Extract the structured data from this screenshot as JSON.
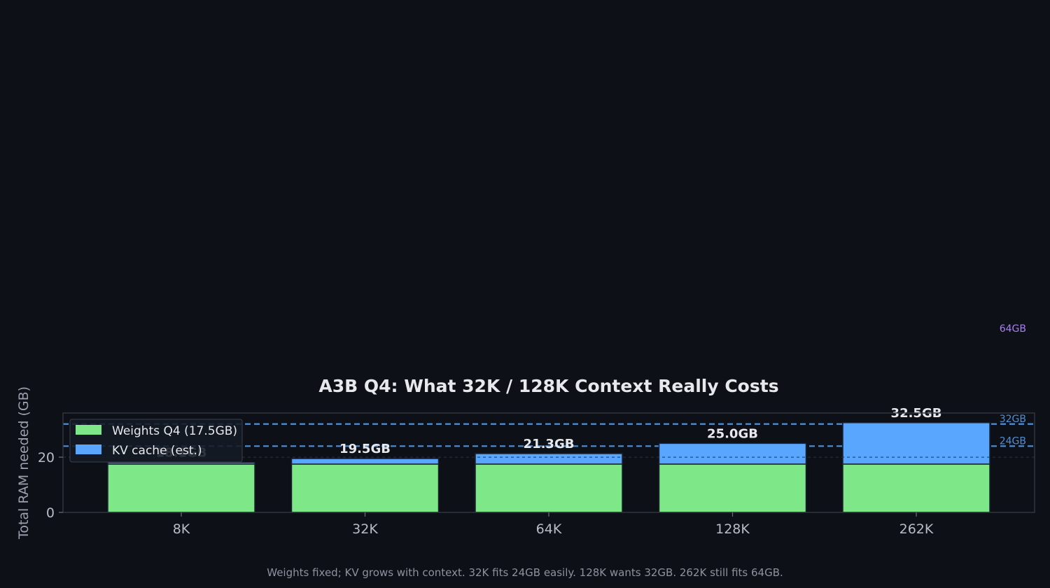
{
  "chart_data": {
    "type": "bar",
    "stacked": true,
    "title": "A3B Q4: What 32K / 128K Context Really Costs",
    "ylabel": "Total RAM needed (GB)",
    "xlabel": "",
    "categories": [
      "8K",
      "32K",
      "64K",
      "128K",
      "262K"
    ],
    "series": [
      {
        "name": "Weights Q4 (17.5GB)",
        "values": [
          17.5,
          17.5,
          17.5,
          17.5,
          17.5
        ],
        "color": "#7ee787"
      },
      {
        "name": "KV cache (est.)",
        "values": [
          0.6,
          2.0,
          3.8,
          7.5,
          15.0
        ],
        "color": "#58a6ff"
      }
    ],
    "totals": [
      18.1,
      19.5,
      21.3,
      25.0,
      32.5
    ],
    "total_labels": [
      "18.1GB",
      "19.5GB",
      "21.3GB",
      "25.0GB",
      "32.5GB"
    ],
    "yticks": [
      0,
      20
    ],
    "ylim": [
      0,
      36
    ],
    "grid": "y",
    "legend": "upper-left",
    "reference_lines": [
      {
        "value": 64,
        "label": "64GB",
        "color": "#a980f0"
      },
      {
        "value": 32,
        "label": "32GB",
        "color": "#4f8fd8"
      },
      {
        "value": 24,
        "label": "24GB",
        "color": "#4f8fd8"
      }
    ],
    "caption": "Weights fixed; KV grows with context. 32K fits 24GB easily. 128K wants 32GB. 262K still fits 64GB."
  }
}
